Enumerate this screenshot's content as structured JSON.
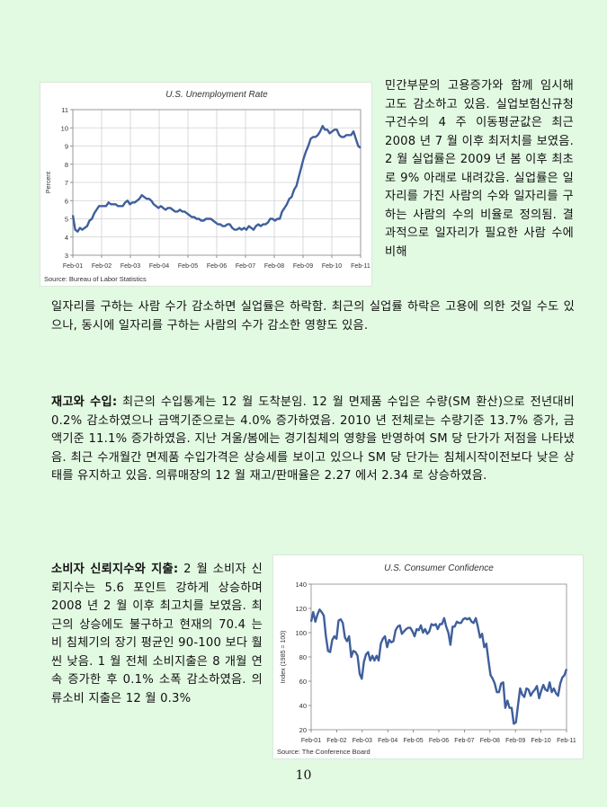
{
  "page_number": "10",
  "intro": {
    "right_text": "민간부문의 고용증가와 함께 임시해고도 감소하고 있음. 실업보험신규청구건수의 4 주 이동평균값은 최근 2008 년 7 월 이후 최저치를 보였음. 2 월 실업률은 2009 년 봄 이후 최초로 9% 아래로 내려갔음. 실업률은 일자리를 가진 사람의 수와 일자리를 구하는 사람의 수의 비율로 정의됨. 결과적으로 일자리가 필요한 사람 수에 비해",
    "full_text": "일자리를 구하는 사람 수가 감소하면 실업률은 하락함. 최근의 실업률 하락은 고용에 의한 것일 수도 있으나, 동시에 일자리를 구하는 사람의 수가 감소한 영향도 있음."
  },
  "inventory": {
    "heading": "재고와 수입:",
    "body": " 최근의 수입통계는 12 월 도착분임. 12 월 면제품 수입은 수량(SM 환산)으로 전년대비 0.2% 감소하였으나 금액기준으로는 4.0% 증가하였음. 2010 년 전체로는 수량기준 13.7% 증가, 금액기준 11.1% 증가하였음. 지난 겨울/봄에는 경기침체의 영향을 반영하여 SM 당 단가가 저점을 나타냈음. 최근 수개월간 면제품 수입가격은 상승세를 보이고 있으나 SM 당 단가는 침체시작이전보다 낮은 상태를 유지하고 있음. 의류매장의 12 월 재고/판매율은 2.27 에서 2.34 로 상승하였음."
  },
  "consumer": {
    "heading": "소비자 신뢰지수와 지출:",
    "body": " 2 월 소비자 신뢰지수는 5.6 포인트 강하게 상승하며 2008 년 2 월 이후 최고치를 보였음. 최근의 상승에도 불구하고 현재의 70.4 는 비 침체기의 장기 평균인 90-100 보다 훨씬 낮음. 1 월 전체 소비지출은 8 개월 연속 증가한 후 0.1% 소폭 감소하였음. 의류소비 지출은 12 월 0.3%"
  },
  "chart_data": [
    {
      "type": "line",
      "title": "U.S. Unemployment Rate",
      "ylabel": "Percent",
      "xlabel": "",
      "source": "Source:  Bureau of Labor Statistics",
      "x_ticks": [
        "Feb-01",
        "Feb-02",
        "Feb-03",
        "Feb-04",
        "Feb-05",
        "Feb-06",
        "Feb-07",
        "Feb-08",
        "Feb-09",
        "Feb-10",
        "Feb-11"
      ],
      "y_ticks": [
        3,
        4,
        5,
        6,
        7,
        8,
        9,
        10,
        11
      ],
      "ylim": [
        3,
        11
      ],
      "xlim": [
        0,
        121
      ],
      "grid": true,
      "series_color": "#3f5f9c",
      "series": [
        {
          "name": "",
          "points": [
            [
              0,
              5.2
            ],
            [
              1,
              4.4
            ],
            [
              2,
              4.3
            ],
            [
              3,
              4.5
            ],
            [
              4,
              4.4
            ],
            [
              5,
              4.5
            ],
            [
              6,
              4.6
            ],
            [
              7,
              4.9
            ],
            [
              8,
              5.0
            ],
            [
              9,
              5.3
            ],
            [
              10,
              5.5
            ],
            [
              11,
              5.7
            ],
            [
              12,
              5.7
            ],
            [
              13,
              5.7
            ],
            [
              14,
              5.7
            ],
            [
              15,
              5.9
            ],
            [
              16,
              5.8
            ],
            [
              17,
              5.8
            ],
            [
              18,
              5.8
            ],
            [
              19,
              5.7
            ],
            [
              20,
              5.7
            ],
            [
              21,
              5.7
            ],
            [
              22,
              5.9
            ],
            [
              23,
              6.0
            ],
            [
              24,
              5.8
            ],
            [
              25,
              5.9
            ],
            [
              26,
              5.9
            ],
            [
              27,
              6.0
            ],
            [
              28,
              6.1
            ],
            [
              29,
              6.3
            ],
            [
              30,
              6.2
            ],
            [
              31,
              6.1
            ],
            [
              32,
              6.1
            ],
            [
              33,
              6.0
            ],
            [
              34,
              5.8
            ],
            [
              35,
              5.7
            ],
            [
              36,
              5.6
            ],
            [
              37,
              5.7
            ],
            [
              38,
              5.6
            ],
            [
              39,
              5.5
            ],
            [
              40,
              5.6
            ],
            [
              41,
              5.6
            ],
            [
              42,
              5.5
            ],
            [
              43,
              5.4
            ],
            [
              44,
              5.4
            ],
            [
              45,
              5.5
            ],
            [
              46,
              5.4
            ],
            [
              47,
              5.4
            ],
            [
              48,
              5.3
            ],
            [
              49,
              5.2
            ],
            [
              50,
              5.1
            ],
            [
              51,
              5.1
            ],
            [
              52,
              5.0
            ],
            [
              53,
              5.0
            ],
            [
              54,
              4.9
            ],
            [
              55,
              4.9
            ],
            [
              56,
              5.0
            ],
            [
              57,
              5.0
            ],
            [
              58,
              5.0
            ],
            [
              59,
              4.9
            ],
            [
              60,
              4.8
            ],
            [
              61,
              4.7
            ],
            [
              62,
              4.7
            ],
            [
              63,
              4.6
            ],
            [
              64,
              4.6
            ],
            [
              65,
              4.7
            ],
            [
              66,
              4.7
            ],
            [
              67,
              4.5
            ],
            [
              68,
              4.4
            ],
            [
              69,
              4.4
            ],
            [
              70,
              4.5
            ],
            [
              71,
              4.4
            ],
            [
              72,
              4.5
            ],
            [
              73,
              4.4
            ],
            [
              74,
              4.6
            ],
            [
              75,
              4.5
            ],
            [
              76,
              4.4
            ],
            [
              77,
              4.6
            ],
            [
              78,
              4.7
            ],
            [
              79,
              4.6
            ],
            [
              80,
              4.7
            ],
            [
              81,
              4.7
            ],
            [
              82,
              4.8
            ],
            [
              83,
              5.0
            ],
            [
              84,
              5.0
            ],
            [
              85,
              4.9
            ],
            [
              86,
              5.0
            ],
            [
              87,
              5.0
            ],
            [
              88,
              5.4
            ],
            [
              89,
              5.6
            ],
            [
              90,
              5.8
            ],
            [
              91,
              6.1
            ],
            [
              92,
              6.2
            ],
            [
              93,
              6.6
            ],
            [
              94,
              6.8
            ],
            [
              95,
              7.3
            ],
            [
              96,
              7.8
            ],
            [
              97,
              8.3
            ],
            [
              98,
              8.7
            ],
            [
              99,
              9.0
            ],
            [
              100,
              9.4
            ],
            [
              101,
              9.5
            ],
            [
              102,
              9.5
            ],
            [
              103,
              9.6
            ],
            [
              104,
              9.8
            ],
            [
              105,
              10.1
            ],
            [
              106,
              9.9
            ],
            [
              107,
              9.9
            ],
            [
              108,
              9.7
            ],
            [
              109,
              9.8
            ],
            [
              110,
              9.9
            ],
            [
              111,
              9.9
            ],
            [
              112,
              9.6
            ],
            [
              113,
              9.5
            ],
            [
              114,
              9.5
            ],
            [
              115,
              9.6
            ],
            [
              116,
              9.6
            ],
            [
              117,
              9.6
            ],
            [
              118,
              9.8
            ],
            [
              119,
              9.4
            ],
            [
              120,
              9.0
            ],
            [
              121,
              8.9
            ]
          ]
        }
      ]
    },
    {
      "type": "line",
      "title": "U.S. Consumer Confidence",
      "ylabel": "Index (1985 = 100)",
      "xlabel": "",
      "source": "Source:  The Conference Board",
      "x_ticks": [
        "Feb-01",
        "Feb-02",
        "Feb-03",
        "Feb-04",
        "Feb-05",
        "Feb-06",
        "Feb-07",
        "Feb-08",
        "Feb-09",
        "Feb-10",
        "Feb-11"
      ],
      "y_ticks": [
        20,
        40,
        60,
        80,
        100,
        120,
        140
      ],
      "ylim": [
        20,
        140
      ],
      "xlim": [
        0,
        121
      ],
      "grid": false,
      "series_color": "#3f5f9c",
      "series": [
        {
          "name": "",
          "points": [
            [
              0,
              109
            ],
            [
              1,
              117
            ],
            [
              2,
              109
            ],
            [
              3,
              115
            ],
            [
              4,
              119
            ],
            [
              5,
              117
            ],
            [
              6,
              114
            ],
            [
              7,
              97
            ],
            [
              8,
              85
            ],
            [
              9,
              84
            ],
            [
              10,
              94
            ],
            [
              11,
              97
            ],
            [
              12,
              95
            ],
            [
              13,
              110
            ],
            [
              14,
              111
            ],
            [
              15,
              108
            ],
            [
              16,
              96
            ],
            [
              17,
              93
            ],
            [
              18,
              97
            ],
            [
              19,
              80
            ],
            [
              20,
              85
            ],
            [
              21,
              84
            ],
            [
              22,
              81
            ],
            [
              23,
              66
            ],
            [
              24,
              62
            ],
            [
              25,
              76
            ],
            [
              26,
              82
            ],
            [
              27,
              84
            ],
            [
              28,
              77
            ],
            [
              29,
              81
            ],
            [
              30,
              77
            ],
            [
              31,
              81
            ],
            [
              32,
              77
            ],
            [
              33,
              91
            ],
            [
              34,
              95
            ],
            [
              35,
              97
            ],
            [
              36,
              88
            ],
            [
              37,
              94
            ],
            [
              38,
              92
            ],
            [
              39,
              93
            ],
            [
              40,
              102
            ],
            [
              41,
              105
            ],
            [
              42,
              106
            ],
            [
              43,
              99
            ],
            [
              44,
              101
            ],
            [
              45,
              103
            ],
            [
              46,
              104
            ],
            [
              47,
              104
            ],
            [
              48,
              101
            ],
            [
              49,
              97
            ],
            [
              50,
              103
            ],
            [
              51,
              102
            ],
            [
              52,
              106
            ],
            [
              53,
              100
            ],
            [
              54,
              103
            ],
            [
              55,
              99
            ],
            [
              56,
              101
            ],
            [
              57,
              107
            ],
            [
              58,
              106
            ],
            [
              59,
              107
            ],
            [
              60,
              103
            ],
            [
              61,
              107
            ],
            [
              62,
              107
            ],
            [
              63,
              112
            ],
            [
              64,
              105
            ],
            [
              65,
              100
            ],
            [
              66,
              90
            ],
            [
              67,
              105
            ],
            [
              68,
              105
            ],
            [
              69,
              109
            ],
            [
              70,
              108
            ],
            [
              71,
              108
            ],
            [
              72,
              111
            ],
            [
              73,
              112
            ],
            [
              74,
              111
            ],
            [
              75,
              112
            ],
            [
              76,
              109
            ],
            [
              77,
              108
            ],
            [
              78,
              112
            ],
            [
              79,
              105
            ],
            [
              80,
              96
            ],
            [
              81,
              99
            ],
            [
              82,
              88
            ],
            [
              83,
              91
            ],
            [
              84,
              77
            ],
            [
              85,
              65
            ],
            [
              86,
              62
            ],
            [
              87,
              58
            ],
            [
              88,
              51
            ],
            [
              89,
              51
            ],
            [
              90,
              58
            ],
            [
              91,
              59
            ],
            [
              92,
              38
            ],
            [
              93,
              44
            ],
            [
              94,
              38
            ],
            [
              95,
              38
            ],
            [
              96,
              25
            ],
            [
              97,
              26
            ],
            [
              98,
              40
            ],
            [
              99,
              54
            ],
            [
              100,
              49
            ],
            [
              101,
              47
            ],
            [
              102,
              54
            ],
            [
              103,
              53
            ],
            [
              104,
              48
            ],
            [
              105,
              51
            ],
            [
              106,
              53
            ],
            [
              107,
              56
            ],
            [
              108,
              46
            ],
            [
              109,
              52
            ],
            [
              110,
              57
            ],
            [
              111,
              53
            ],
            [
              112,
              52
            ],
            [
              113,
              59
            ],
            [
              114,
              51
            ],
            [
              115,
              54
            ],
            [
              116,
              50
            ],
            [
              117,
              48
            ],
            [
              118,
              58
            ],
            [
              119,
              63
            ],
            [
              120,
              65
            ],
            [
              121,
              70
            ]
          ]
        }
      ]
    }
  ]
}
